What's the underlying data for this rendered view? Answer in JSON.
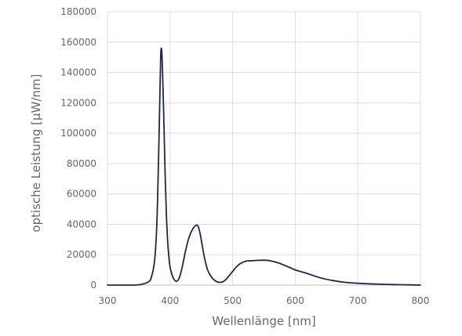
{
  "chart_data": {
    "type": "line",
    "title": "",
    "xlabel": "Wellenlänge [nm]",
    "ylabel": "optische Leistung [µW/nm]",
    "xlim": [
      300,
      800
    ],
    "ylim": [
      0,
      180000
    ],
    "x_ticks": [
      300,
      400,
      500,
      600,
      700,
      800
    ],
    "y_ticks": [
      0,
      20000,
      40000,
      60000,
      80000,
      100000,
      120000,
      140000,
      160000,
      180000
    ],
    "grid": true,
    "legend": "none",
    "colors": {
      "line": "#1f2747",
      "grid": "#dddddd",
      "text": "#666666",
      "background": "#ffffff"
    },
    "series": [
      {
        "x": [
          300,
          330,
          350,
          365,
          370,
          375,
          378,
          380,
          382,
          384,
          385,
          386,
          387,
          388,
          390,
          392,
          394,
          396,
          398,
          400,
          403,
          406,
          410,
          415,
          420,
          425,
          430,
          435,
          440,
          443,
          445,
          448,
          451,
          455,
          460,
          465,
          470,
          475,
          480,
          485,
          490,
          495,
          500,
          505,
          510,
          515,
          520,
          525,
          530,
          540,
          550,
          555,
          560,
          570,
          580,
          590,
          600,
          620,
          640,
          660,
          680,
          700,
          720,
          740,
          760,
          780,
          790,
          795,
          800
        ],
        "y": [
          0,
          0,
          200,
          2000,
          5000,
          15000,
          32000,
          55000,
          90000,
          130000,
          150000,
          156000,
          152000,
          140000,
          110000,
          75000,
          48000,
          30000,
          19000,
          12000,
          7000,
          4000,
          2500,
          5000,
          13000,
          23000,
          31000,
          36000,
          39000,
          39500,
          38500,
          34000,
          27000,
          18000,
          10000,
          6000,
          3500,
          2200,
          1800,
          2300,
          4000,
          6500,
          9000,
          11500,
          13500,
          14800,
          15600,
          16000,
          16000,
          16300,
          16400,
          16300,
          16000,
          15000,
          13500,
          11800,
          10000,
          7500,
          4800,
          3000,
          1800,
          1200,
          800,
          500,
          300,
          150,
          100,
          50,
          0
        ]
      }
    ]
  }
}
